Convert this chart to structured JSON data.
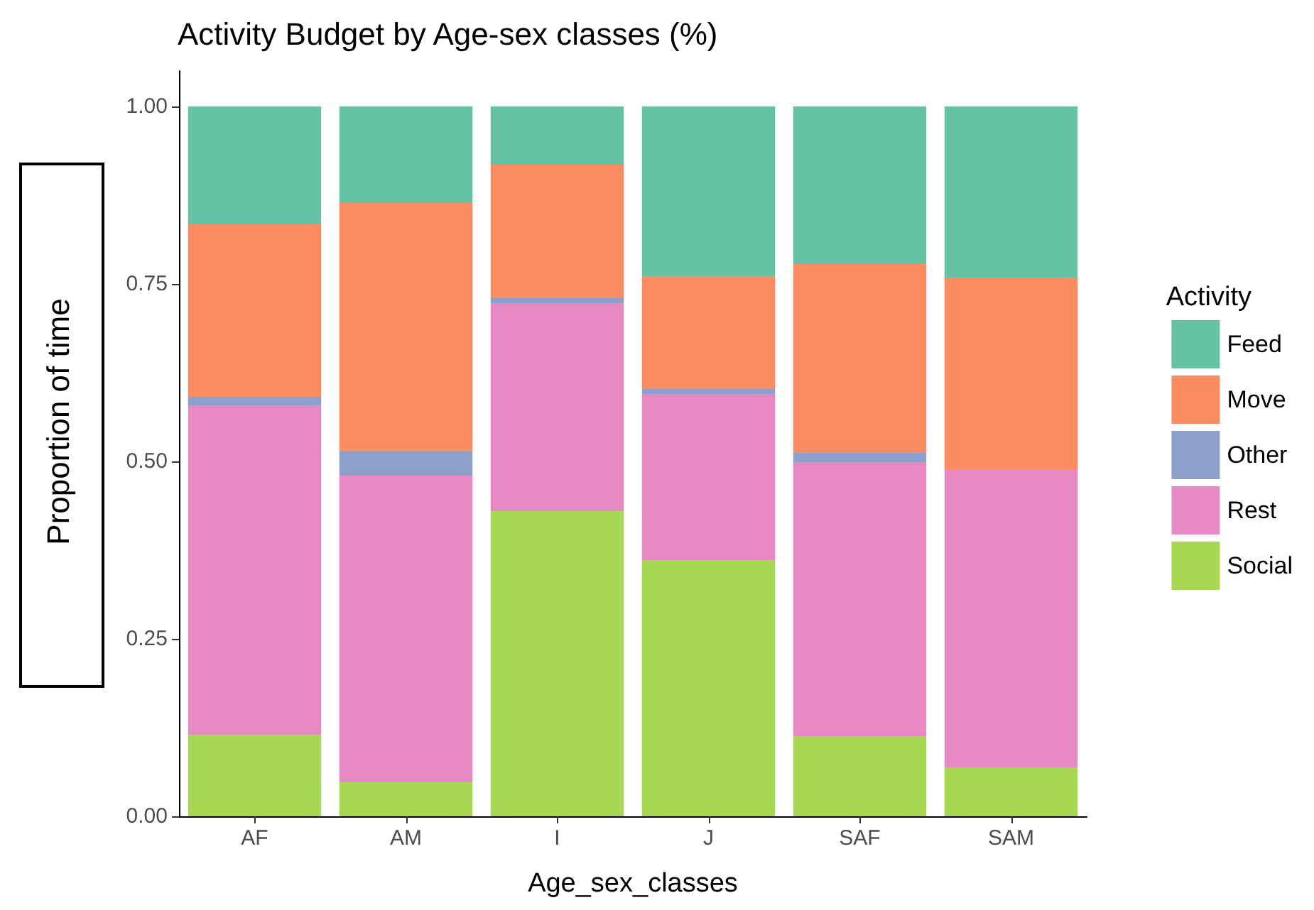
{
  "chart_data": {
    "type": "bar",
    "stacked": true,
    "title": "Activity Budget by Age-sex classes (%)",
    "xlabel": "Age_sex_classes",
    "ylabel": "Proportion of time",
    "legend_title": "Activity",
    "legend": "right",
    "grid": false,
    "categories": [
      "AF",
      "AM",
      "I",
      "J",
      "SAF",
      "SAM"
    ],
    "ylim": [
      0,
      1.05
    ],
    "yticks": [
      {
        "value": 0,
        "label": "0.00"
      },
      {
        "value": 0.25,
        "label": "0.25"
      },
      {
        "value": 0.5,
        "label": "0.50"
      },
      {
        "value": 0.75,
        "label": "0.75"
      },
      {
        "value": 1,
        "label": "1.00"
      }
    ],
    "series": [
      {
        "name": "Social",
        "color": "#a6d854",
        "values": [
          0.115,
          0.048,
          0.43,
          0.361,
          0.113,
          0.069
        ]
      },
      {
        "name": "Rest",
        "color": "#e78ac3",
        "values": [
          0.464,
          0.432,
          0.293,
          0.234,
          0.386,
          0.419
        ]
      },
      {
        "name": "Other",
        "color": "#8da0cb",
        "values": [
          0.012,
          0.034,
          0.007,
          0.007,
          0.013,
          0
        ]
      },
      {
        "name": "Move",
        "color": "#fc8d62",
        "values": [
          0.243,
          0.35,
          0.188,
          0.159,
          0.266,
          0.271
        ]
      },
      {
        "name": "Feed",
        "color": "#66c2a5",
        "values": [
          0.166,
          0.136,
          0.082,
          0.239,
          0.222,
          0.241
        ]
      }
    ]
  }
}
